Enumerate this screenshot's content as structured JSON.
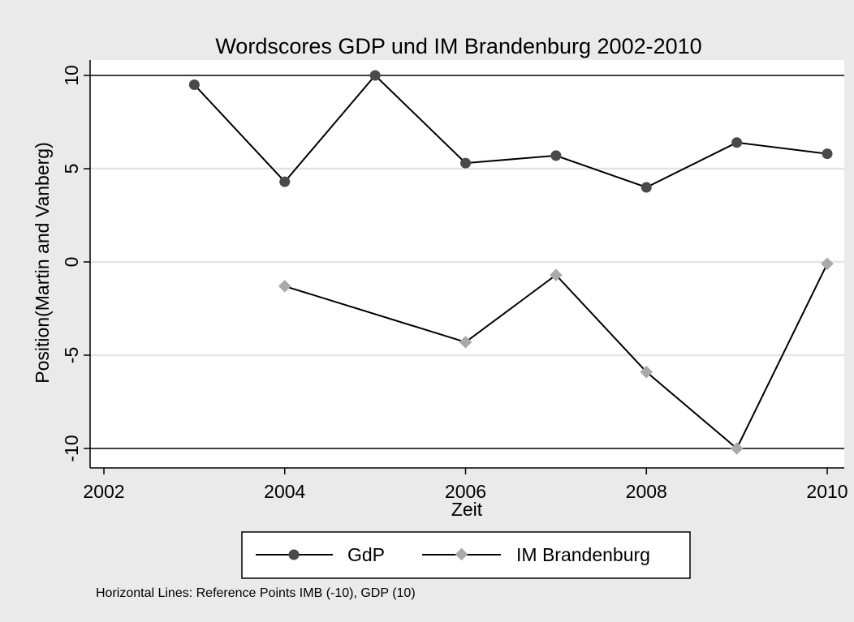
{
  "chart_data": {
    "type": "line",
    "title": "Wordscores GDP und IM Brandenburg 2002-2010",
    "xlabel": "Zeit",
    "ylabel": "Position(Martin and Vanberg)",
    "xlim": [
      2002,
      2010
    ],
    "ylim": [
      -10,
      10
    ],
    "x_ticks": [
      2002,
      2004,
      2006,
      2008,
      2010
    ],
    "y_ticks": [
      -10,
      -5,
      0,
      5,
      10
    ],
    "x_tick_labels": [
      "2002",
      "2004",
      "2006",
      "2008",
      "2010"
    ],
    "y_tick_labels": [
      "-10",
      "-5",
      "0",
      "5",
      "10"
    ],
    "grid": "horizontal",
    "reference_lines": [
      10,
      -10
    ],
    "legend_position": "bottom",
    "series": [
      {
        "name": "GdP",
        "marker": "circle",
        "color": "#4a4a4a",
        "points": [
          {
            "x": 2003,
            "y": 9.5
          },
          {
            "x": 2004,
            "y": 4.3
          },
          {
            "x": 2005,
            "y": 10.0
          },
          {
            "x": 2006,
            "y": 5.3
          },
          {
            "x": 2007,
            "y": 5.7
          },
          {
            "x": 2008,
            "y": 4.0
          },
          {
            "x": 2009,
            "y": 6.4
          },
          {
            "x": 2010,
            "y": 5.8
          }
        ]
      },
      {
        "name": "IM Brandenburg",
        "marker": "diamond",
        "color": "#a9a9a9",
        "points": [
          {
            "x": 2004,
            "y": -1.3
          },
          {
            "x": 2006,
            "y": -4.3
          },
          {
            "x": 2007,
            "y": -0.7
          },
          {
            "x": 2008,
            "y": -5.9
          },
          {
            "x": 2009,
            "y": -10.0
          },
          {
            "x": 2010,
            "y": -0.1
          }
        ]
      }
    ],
    "note": "Horizontal Lines: Reference Points IMB (-10), GDP (10)"
  },
  "colors": {
    "background": "#eaeaea",
    "plot_area": "#ffffff",
    "line": "#000000",
    "gdp_marker": "#4a4a4a",
    "imb_marker": "#a9a9a9"
  }
}
